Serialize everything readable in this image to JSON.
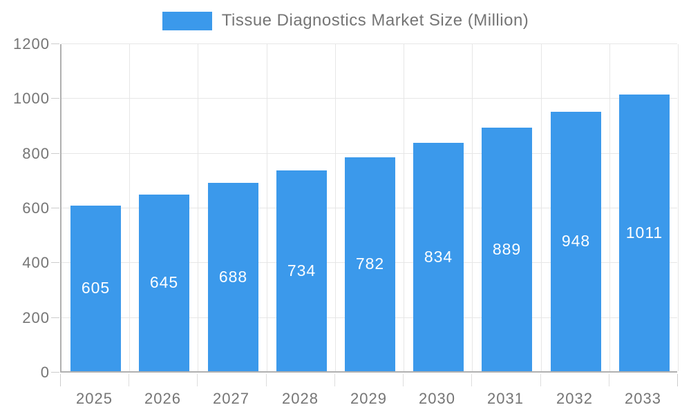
{
  "legend": {
    "label": "Tissue Diagnostics Market Size (Million)"
  },
  "chart_data": {
    "type": "bar",
    "title": "Tissue Diagnostics Market Size (Million)",
    "categories": [
      "2025",
      "2026",
      "2027",
      "2028",
      "2029",
      "2030",
      "2031",
      "2032",
      "2033"
    ],
    "values": [
      605,
      645,
      688,
      734,
      782,
      834,
      889,
      948,
      1011
    ],
    "xlabel": "",
    "ylabel": "",
    "ylim": [
      0,
      1200
    ],
    "yticks": [
      0,
      200,
      400,
      600,
      800,
      1000,
      1200
    ],
    "grid": "both",
    "legend_position": "top-center",
    "bar_label_position": "inside-middle",
    "colors": {
      "bar": "#3b99eb",
      "bar_label": "#ffffff",
      "grid": "#e6e6e6",
      "axis": "#b0b0b0",
      "tick": "#cccccc",
      "tick_text": "#757575",
      "background": "#ffffff"
    }
  }
}
